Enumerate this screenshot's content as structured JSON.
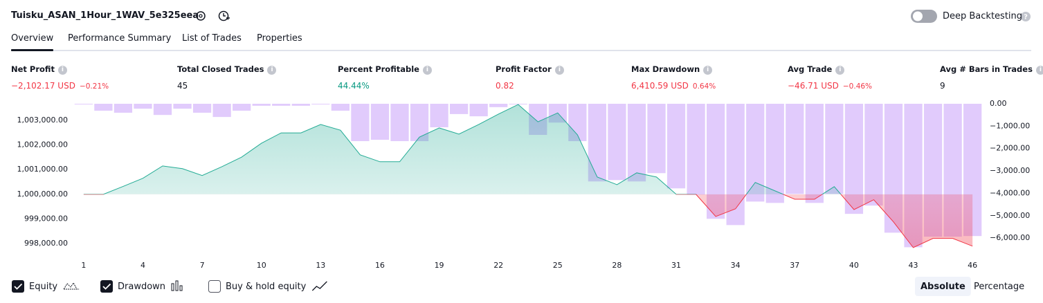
{
  "header": {
    "title": "Tuisku_ASAN_1Hour_1WAV_5e325eea",
    "toggle_label": "Deep Backtesting",
    "toggle_on": false
  },
  "tabs": {
    "items": [
      "Overview",
      "Performance Summary",
      "List of Trades",
      "Properties"
    ],
    "active": 0
  },
  "metrics": [
    {
      "label": "Net Profit",
      "value": "−2,102.17 USD",
      "pct": "−0.21%",
      "color": "#f23645"
    },
    {
      "label": "Total Closed Trades",
      "value": "45",
      "color": "#131722"
    },
    {
      "label": "Percent Profitable",
      "value": "44.44%",
      "color": "#089981"
    },
    {
      "label": "Profit Factor",
      "value": "0.82",
      "color": "#f23645"
    },
    {
      "label": "Max Drawdown",
      "value": "6,410.59 USD",
      "pct": "0.64%",
      "color": "#f23645"
    },
    {
      "label": "Avg Trade",
      "value": "−46.71 USD",
      "pct": "−0.46%",
      "color": "#f23645"
    },
    {
      "label": "Avg # Bars in Trades",
      "value": "9",
      "color": "#131722"
    }
  ],
  "chart_data": {
    "type": "equity_drawdown",
    "x": [
      1,
      2,
      3,
      4,
      5,
      6,
      7,
      8,
      9,
      10,
      11,
      12,
      13,
      14,
      15,
      16,
      17,
      18,
      19,
      20,
      21,
      22,
      23,
      24,
      25,
      26,
      27,
      28,
      29,
      30,
      31,
      32,
      33,
      34,
      35,
      36,
      37,
      38,
      39,
      40,
      41,
      42,
      43,
      44,
      45,
      46
    ],
    "xlim": [
      0.55,
      46.45
    ],
    "xticks": [
      1,
      4,
      7,
      10,
      13,
      16,
      19,
      22,
      25,
      28,
      31,
      34,
      37,
      40,
      43,
      46
    ],
    "baseline": 1000000,
    "series": [
      {
        "name": "Equity",
        "axis": "y",
        "color": "#22ab94",
        "negative_color": "#f23645",
        "checked": true,
        "values": [
          1000000,
          1000000,
          1000320,
          1000650,
          1001150,
          1001040,
          1000760,
          1001120,
          1001510,
          1002070,
          1002490,
          1002490,
          1002830,
          1002600,
          1001600,
          1001320,
          1001320,
          1002320,
          1002690,
          1002440,
          1002830,
          1003250,
          1003640,
          1002940,
          1003300,
          1002410,
          1000700,
          1000390,
          1000870,
          1000700,
          1000000,
          1000000,
          999100,
          999410,
          1000480,
          1000140,
          999800,
          999800,
          1000310,
          999380,
          999780,
          998880,
          997840,
          998210,
          998210,
          997898
        ]
      },
      {
        "name": "Drawdown",
        "axis": "y2",
        "color": "#dcc2fc",
        "checked": true,
        "values": [
          -30,
          -310,
          -400,
          -220,
          -500,
          -220,
          -400,
          -590,
          -310,
          -90,
          -90,
          -90,
          -30,
          -310,
          -1670,
          -1610,
          -1670,
          -1670,
          -1050,
          -460,
          -560,
          -150,
          -30,
          -1390,
          -840,
          -1670,
          -3470,
          -3410,
          -3470,
          -3100,
          -3780,
          -4060,
          -5140,
          -5420,
          -4370,
          -4430,
          -4030,
          -4430,
          -4030,
          -4920,
          -4550,
          -5760,
          -6410.59,
          -5940,
          -5940,
          -5910
        ]
      }
    ],
    "extra_legend": {
      "name": "Buy & hold equity",
      "checked": false
    },
    "ylim": [
      997500,
      1003670
    ],
    "yticks": [
      {
        "value": 998000,
        "label": "998,000.00"
      },
      {
        "value": 999000,
        "label": "999,000.00"
      },
      {
        "value": 1000000,
        "label": "1,000,000.00"
      },
      {
        "value": 1001000,
        "label": "1,001,000.00"
      },
      {
        "value": 1002000,
        "label": "1,002,000.00"
      },
      {
        "value": 1003000,
        "label": "1,003,000.00"
      }
    ],
    "y2lim": [
      -6800,
      0
    ],
    "y2ticks": [
      {
        "value": 0,
        "label": "0.00"
      },
      {
        "value": -1000,
        "label": "−1,000.00"
      },
      {
        "value": -2000,
        "label": "−2,000.00"
      },
      {
        "value": -3000,
        "label": "−3,000.00"
      },
      {
        "value": -4000,
        "label": "−4,000.00"
      },
      {
        "value": -5000,
        "label": "−5,000.00"
      },
      {
        "value": -6000,
        "label": "−6,000.00"
      }
    ]
  },
  "view_buttons": {
    "items": [
      "Absolute",
      "Percentage"
    ],
    "active": 0
  }
}
